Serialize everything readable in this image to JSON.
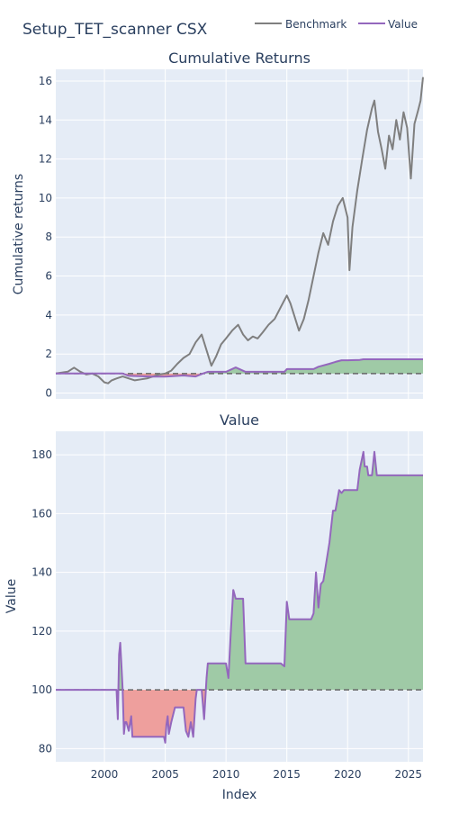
{
  "title": "Setup_TET_scanner CSX",
  "colors": {
    "plot_bg": "#e5ecf6",
    "grid": "#ffffff",
    "benchmark": "#7f7f7f",
    "value": "#9467bd",
    "gain_fill": "#9fcaa6",
    "loss_fill": "#ee9f9d",
    "baseline": "#666666"
  },
  "legend": {
    "items": [
      {
        "label": "Benchmark",
        "color": "#7f7f7f"
      },
      {
        "label": "Value",
        "color": "#9467bd"
      }
    ]
  },
  "chart_data": [
    {
      "type": "line",
      "title": "Cumulative Returns",
      "ylabel": "Cumulative returns",
      "xlim": [
        1996.0,
        2026.2
      ],
      "ylim": [
        -0.3,
        16.6
      ],
      "yticks": [
        0,
        2,
        4,
        6,
        8,
        10,
        12,
        14,
        16
      ],
      "baseline": 1,
      "series": [
        {
          "name": "Benchmark",
          "x": [
            1996.0,
            1996.5,
            1997.0,
            1997.5,
            1998.0,
            1998.5,
            1999.0,
            1999.5,
            2000.0,
            2000.3,
            2000.6,
            2001.0,
            2001.5,
            2002.0,
            2002.5,
            2003.0,
            2003.5,
            2004.0,
            2004.5,
            2005.0,
            2005.5,
            2006.0,
            2006.5,
            2007.0,
            2007.5,
            2008.0,
            2008.4,
            2008.8,
            2009.2,
            2009.6,
            2010.0,
            2010.5,
            2011.0,
            2011.4,
            2011.8,
            2012.2,
            2012.6,
            2013.0,
            2013.5,
            2014.0,
            2014.5,
            2015.0,
            2015.3,
            2015.6,
            2016.0,
            2016.4,
            2016.8,
            2017.2,
            2017.6,
            2018.0,
            2018.4,
            2018.8,
            2019.2,
            2019.6,
            2020.0,
            2020.15,
            2020.4,
            2020.8,
            2021.2,
            2021.6,
            2022.0,
            2022.2,
            2022.5,
            2022.8,
            2023.1,
            2023.4,
            2023.7,
            2024.0,
            2024.3,
            2024.6,
            2024.9,
            2025.2,
            2025.5,
            2025.8,
            2026.0,
            2026.2
          ],
          "y": [
            1.0,
            1.05,
            1.1,
            1.3,
            1.1,
            0.95,
            1.0,
            0.85,
            0.55,
            0.5,
            0.65,
            0.75,
            0.85,
            0.75,
            0.65,
            0.7,
            0.75,
            0.85,
            0.95,
            1.0,
            1.15,
            1.5,
            1.8,
            2.0,
            2.6,
            3.0,
            2.2,
            1.4,
            1.9,
            2.5,
            2.8,
            3.2,
            3.5,
            3.0,
            2.7,
            2.9,
            2.8,
            3.1,
            3.5,
            3.8,
            4.4,
            5.0,
            4.6,
            4.0,
            3.2,
            3.8,
            4.8,
            6.0,
            7.2,
            8.2,
            7.6,
            8.8,
            9.6,
            10.0,
            9.0,
            6.3,
            8.5,
            10.4,
            12.0,
            13.5,
            14.6,
            15.0,
            13.4,
            12.5,
            11.5,
            13.2,
            12.5,
            14.0,
            13.0,
            14.4,
            13.6,
            11.0,
            13.8,
            14.5,
            15.0,
            16.2
          ]
        },
        {
          "name": "Value",
          "x": [
            1996.0,
            2001.2,
            2001.5,
            2002.0,
            2004.0,
            2005.0,
            2006.5,
            2007.5,
            2008.1,
            2008.5,
            2010.0,
            2010.8,
            2011.6,
            2012.0,
            2014.8,
            2015.0,
            2017.2,
            2017.6,
            2018.5,
            2019.0,
            2019.5,
            2020.0,
            2021.0,
            2021.3,
            2022.0,
            2026.2
          ],
          "y": [
            1.0,
            1.0,
            1.0,
            0.88,
            0.84,
            0.84,
            0.9,
            0.85,
            1.0,
            1.09,
            1.09,
            1.31,
            1.09,
            1.09,
            1.09,
            1.23,
            1.23,
            1.35,
            1.5,
            1.6,
            1.68,
            1.68,
            1.7,
            1.73,
            1.73,
            1.73
          ]
        }
      ]
    },
    {
      "type": "area",
      "title": "Value",
      "xlabel": "Index",
      "ylabel": "Value",
      "xlim": [
        1996.0,
        2026.2
      ],
      "ylim": [
        75.5,
        188
      ],
      "xticks": [
        2000,
        2005,
        2010,
        2015,
        2020,
        2025
      ],
      "yticks": [
        80,
        100,
        120,
        140,
        160,
        180
      ],
      "baseline": 100,
      "series": [
        {
          "name": "Value",
          "x": [
            1996.0,
            2000.0,
            2001.0,
            2001.1,
            2001.2,
            2001.3,
            2001.4,
            2001.5,
            2001.6,
            2001.7,
            2001.8,
            2002.0,
            2002.2,
            2002.3,
            2002.4,
            2002.5,
            2004.0,
            2004.9,
            2005.0,
            2005.1,
            2005.2,
            2005.3,
            2005.5,
            2005.8,
            2006.5,
            2006.7,
            2006.9,
            2007.1,
            2007.3,
            2007.5,
            2007.6,
            2007.8,
            2008.0,
            2008.2,
            2008.4,
            2008.5,
            2010.0,
            2010.2,
            2010.4,
            2010.6,
            2010.8,
            2011.0,
            2011.4,
            2011.6,
            2012.0,
            2014.5,
            2014.8,
            2015.0,
            2015.2,
            2015.4,
            2017.0,
            2017.2,
            2017.4,
            2017.6,
            2017.8,
            2018.0,
            2018.5,
            2018.8,
            2019.0,
            2019.3,
            2019.5,
            2019.7,
            2020.0,
            2020.8,
            2021.0,
            2021.3,
            2021.4,
            2021.6,
            2021.7,
            2022.0,
            2022.2,
            2022.4,
            2026.2
          ],
          "y": [
            100,
            100,
            100,
            90,
            112,
            116,
            108,
            100,
            85,
            89,
            89,
            86,
            91,
            84,
            84,
            84,
            84,
            84,
            82,
            88,
            91,
            85,
            89,
            94,
            94,
            86,
            84,
            89,
            84,
            97,
            100,
            100,
            100,
            90,
            104,
            109,
            109,
            104,
            120,
            134,
            131,
            131,
            131,
            109,
            109,
            109,
            108,
            130,
            124,
            124,
            124,
            126,
            140,
            128,
            136,
            137,
            150,
            161,
            161,
            168,
            167,
            168,
            168,
            168,
            175,
            181,
            176,
            176,
            173,
            173,
            181,
            173,
            173
          ]
        }
      ]
    }
  ]
}
